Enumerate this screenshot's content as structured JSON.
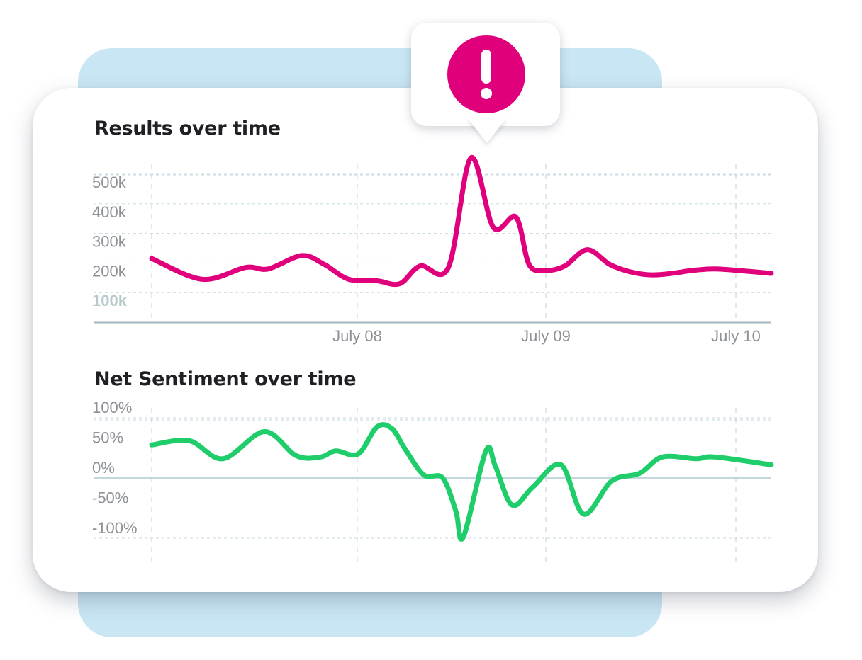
{
  "colors": {
    "results_line": "#e0007b",
    "sentiment_line": "#1fce6b",
    "alert": "#e0007b",
    "back_panel": "#c9e6f4"
  },
  "alert": {
    "icon": "exclamation-icon"
  },
  "chart_data": [
    {
      "type": "line",
      "title": "Results over time",
      "xlabel": "",
      "ylabel": "",
      "x_tick_labels": [
        "July 08",
        "July 09",
        "July 10"
      ],
      "y_tick_labels": [
        "100k",
        "200k",
        "300k",
        "400k",
        "500k"
      ],
      "ylim": [
        0,
        550000
      ],
      "xlim": [
        0,
        3.3
      ],
      "grid": true,
      "series": [
        {
          "name": "Results",
          "x": [
            0,
            0.27,
            0.5,
            0.62,
            0.8,
            0.92,
            1.05,
            1.2,
            1.32,
            1.43,
            1.58,
            1.7,
            1.82,
            1.94,
            2.01,
            2.1,
            2.2,
            2.32,
            2.44,
            2.55,
            2.66,
            2.77,
            2.88,
            3.0,
            3.12,
            3.3
          ],
          "values": [
            215000,
            145000,
            185000,
            180000,
            225000,
            195000,
            145000,
            140000,
            130000,
            190000,
            185000,
            555000,
            320000,
            355000,
            195000,
            175000,
            190000,
            245000,
            195000,
            170000,
            160000,
            165000,
            175000,
            180000,
            175000,
            165000
          ]
        }
      ]
    },
    {
      "type": "line",
      "title": "Net Sentiment over time",
      "xlabel": "",
      "ylabel": "",
      "x_tick_labels": [],
      "y_tick_labels": [
        "100%",
        "50%",
        "0%",
        "-50%",
        "-100%"
      ],
      "ylim": [
        -100,
        100
      ],
      "xlim": [
        0,
        3.3
      ],
      "grid": true,
      "series": [
        {
          "name": "Net Sentiment",
          "x": [
            0,
            0.2,
            0.38,
            0.6,
            0.77,
            0.9,
            0.98,
            1.1,
            1.2,
            1.28,
            1.35,
            1.45,
            1.55,
            1.62,
            1.66,
            1.78,
            1.83,
            1.92,
            2.03,
            2.18,
            2.3,
            2.45,
            2.6,
            2.72,
            2.9,
            3.0,
            3.3
          ],
          "values": [
            55,
            62,
            32,
            77,
            37,
            35,
            45,
            40,
            85,
            82,
            48,
            5,
            0,
            -55,
            -98,
            45,
            20,
            -45,
            -15,
            22,
            -60,
            -5,
            8,
            35,
            32,
            35,
            22
          ]
        }
      ]
    }
  ]
}
